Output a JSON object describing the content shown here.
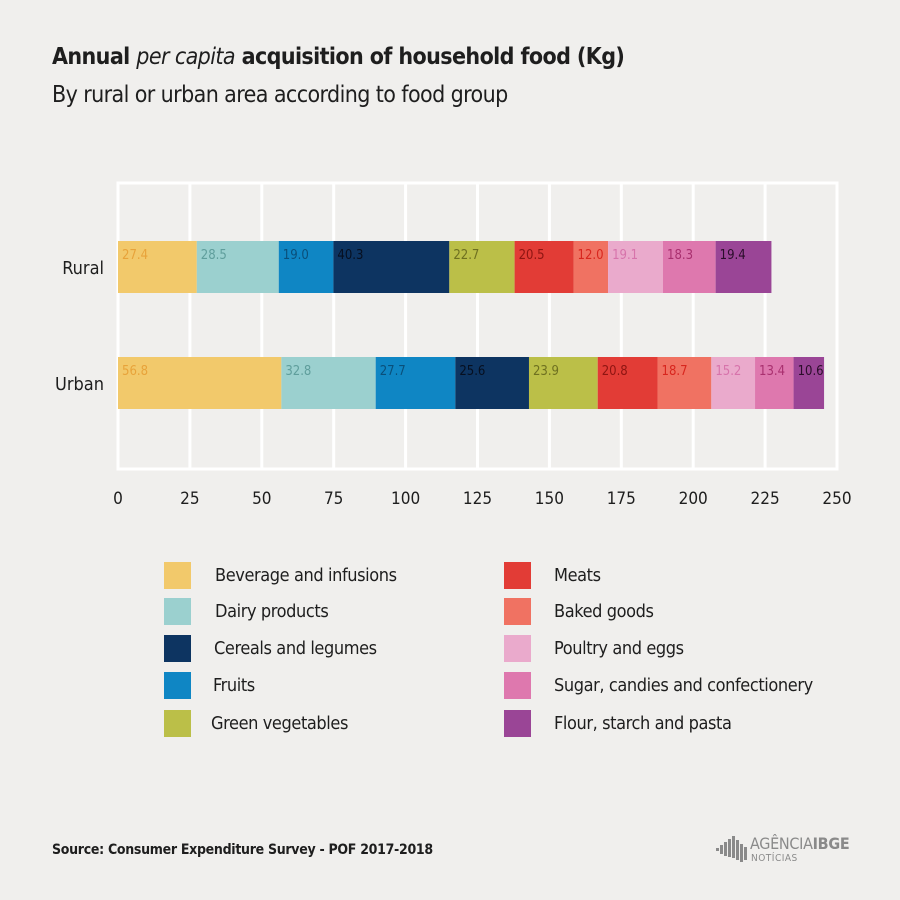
{
  "header": {
    "title_before": "Annual",
    "title_italic": "per capita",
    "title_after": "acquisition of household food (Kg)",
    "subtitle": "By rural or urban area according to food group"
  },
  "chart_data": {
    "type": "bar",
    "orientation": "horizontal",
    "stacked": true,
    "categories": [
      "Rural",
      "Urban"
    ],
    "series": [
      {
        "name": "Beverage and infusions",
        "color": "#f2c96b",
        "label_color": "#e8a33a",
        "values": [
          27.4,
          56.8
        ]
      },
      {
        "name": "Dairy products",
        "color": "#9bd0cf",
        "label_color": "#5f9e9c",
        "values": [
          28.5,
          32.8
        ]
      },
      {
        "name": "Fruits",
        "color": "#0f86c4",
        "label_color": "#0a4f7a",
        "values": [
          19.0,
          27.7
        ]
      },
      {
        "name": "Cereals and legumes",
        "color": "#0d3461",
        "label_color": "#060f20",
        "values": [
          40.3,
          25.6
        ]
      },
      {
        "name": "Green vegetables",
        "color": "#bbbf48",
        "label_color": "#6e7020",
        "values": [
          22.7,
          23.9
        ]
      },
      {
        "name": "Meats",
        "color": "#e23c36",
        "label_color": "#8e1512",
        "values": [
          20.5,
          20.8
        ]
      },
      {
        "name": "Baked goods",
        "color": "#f07262",
        "label_color": "#d8261e",
        "values": [
          12.0,
          18.7
        ]
      },
      {
        "name": "Poultry and eggs",
        "color": "#eaaacc",
        "label_color": "#d773ab",
        "values": [
          19.1,
          15.2
        ]
      },
      {
        "name": "Sugar, candies and confectionery",
        "color": "#de78ae",
        "label_color": "#a9306f",
        "values": [
          18.3,
          13.4
        ]
      },
      {
        "name": "Flour, starch and pasta",
        "color": "#9a4596",
        "label_color": "#2a0d2a",
        "values": [
          19.4,
          10.6
        ]
      }
    ],
    "value_labels": [
      [
        "27.4",
        "56.8"
      ],
      [
        "28.5",
        "32.8"
      ],
      [
        "19.0",
        "27.7"
      ],
      [
        "40.3",
        "25.6"
      ],
      [
        "22.7",
        "23.9"
      ],
      [
        "20.5",
        "20.8"
      ],
      [
        "12.0",
        "18.7"
      ],
      [
        "19.1",
        "15.2"
      ],
      [
        "18.3",
        "13.4"
      ],
      [
        "19.4",
        "10.6"
      ]
    ],
    "xlim": [
      0,
      250
    ],
    "xticks": [
      0,
      25,
      50,
      75,
      100,
      125,
      150,
      175,
      200,
      225,
      250
    ],
    "xtick_labels": [
      "0",
      "25",
      "50",
      "75",
      "100",
      "125",
      "150",
      "175",
      "200",
      "225",
      "250"
    ],
    "grid": "vertical",
    "legend_position": "bottom",
    "legend_order": [
      "Beverage and infusions",
      "Dairy products",
      "Cereals and legumes",
      "Fruits",
      "Green vegetables",
      "Meats",
      "Baked goods",
      "Poultry and eggs",
      "Sugar, candies and confectionery",
      "Flour, starch and pasta"
    ]
  },
  "footer": {
    "source": "Source:  Consumer Expenditure Survey - POF 2017-2018",
    "logo_name_light": "AGÊNCIA",
    "logo_name_bold": "IBGE",
    "logo_sub": "NOTÍCIAS",
    "logo_icon": "ibge-bars-icon"
  }
}
